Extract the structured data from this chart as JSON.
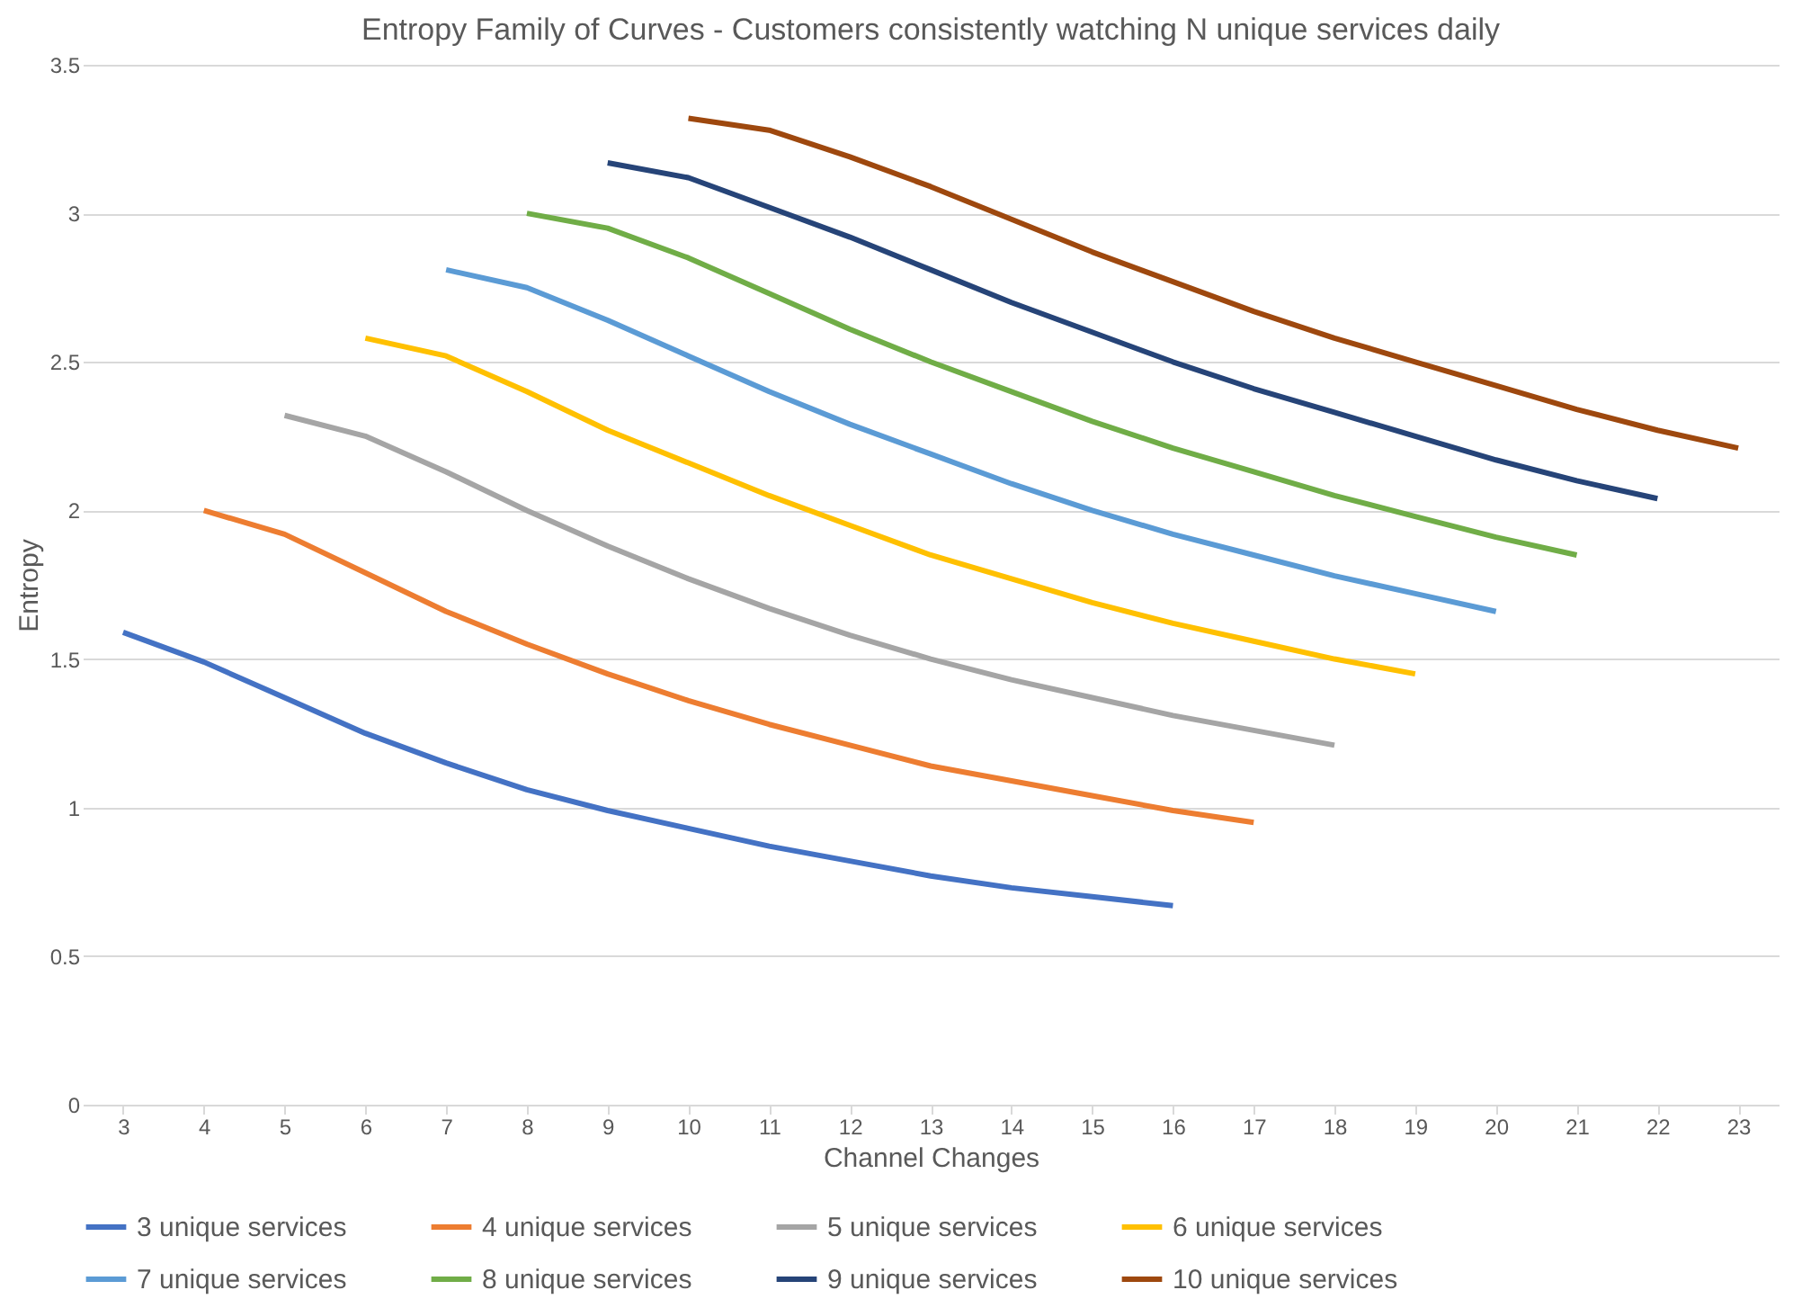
{
  "chart_data": {
    "type": "line",
    "title": "Entropy Family of Curves - Customers consistently watching N unique services daily",
    "xlabel": "Channel Changes",
    "ylabel": "Entropy",
    "categories": [
      "3",
      "4",
      "5",
      "6",
      "7",
      "8",
      "9",
      "10",
      "11",
      "12",
      "13",
      "14",
      "15",
      "16",
      "17",
      "18",
      "19",
      "20",
      "21",
      "22",
      "23"
    ],
    "ylim": [
      0,
      3.5
    ],
    "yticks": [
      0,
      0.5,
      1,
      1.5,
      2,
      2.5,
      3,
      3.5
    ],
    "grid": "y",
    "legend": "bottom",
    "marker": "none",
    "line_style": "solid",
    "series": [
      {
        "name": "3 unique services",
        "color": "#4472c4",
        "values": [
          1.59,
          1.49,
          1.37,
          1.25,
          1.15,
          1.06,
          0.99,
          0.93,
          0.87,
          0.82,
          0.77,
          0.73,
          0.7,
          0.67,
          null,
          null,
          null,
          null,
          null,
          null,
          null
        ]
      },
      {
        "name": "4 unique services",
        "color": "#ed7d31",
        "values": [
          null,
          2.0,
          1.92,
          1.79,
          1.66,
          1.55,
          1.45,
          1.36,
          1.28,
          1.21,
          1.14,
          1.09,
          1.04,
          0.99,
          0.95,
          null,
          null,
          null,
          null,
          null,
          null
        ]
      },
      {
        "name": "5 unique services",
        "color": "#a5a5a5",
        "values": [
          null,
          null,
          2.32,
          2.25,
          2.13,
          2.0,
          1.88,
          1.77,
          1.67,
          1.58,
          1.5,
          1.43,
          1.37,
          1.31,
          1.26,
          1.21,
          null,
          null,
          null,
          null,
          null
        ]
      },
      {
        "name": "6 unique services",
        "color": "#ffc000",
        "values": [
          null,
          null,
          null,
          2.58,
          2.52,
          2.4,
          2.27,
          2.16,
          2.05,
          1.95,
          1.85,
          1.77,
          1.69,
          1.62,
          1.56,
          1.5,
          1.45,
          null,
          null,
          null,
          null
        ]
      },
      {
        "name": "7 unique services",
        "color": "#5b9bd5",
        "values": [
          null,
          null,
          null,
          null,
          2.81,
          2.75,
          2.64,
          2.52,
          2.4,
          2.29,
          2.19,
          2.09,
          2.0,
          1.92,
          1.85,
          1.78,
          1.72,
          1.66,
          null,
          null,
          null
        ]
      },
      {
        "name": "8 unique services",
        "color": "#70ad47",
        "values": [
          null,
          null,
          null,
          null,
          null,
          3.0,
          2.95,
          2.85,
          2.73,
          2.61,
          2.5,
          2.4,
          2.3,
          2.21,
          2.13,
          2.05,
          1.98,
          1.91,
          1.85,
          null,
          null
        ]
      },
      {
        "name": "9 unique services",
        "color": "#264478",
        "values": [
          null,
          null,
          null,
          null,
          null,
          null,
          3.17,
          3.12,
          3.02,
          2.92,
          2.81,
          2.7,
          2.6,
          2.5,
          2.41,
          2.33,
          2.25,
          2.17,
          2.1,
          2.04,
          null
        ]
      },
      {
        "name": "10 unique services",
        "color": "#9e480e",
        "values": [
          null,
          null,
          null,
          null,
          null,
          null,
          null,
          3.32,
          3.28,
          3.19,
          3.09,
          2.98,
          2.87,
          2.77,
          2.67,
          2.58,
          2.5,
          2.42,
          2.34,
          2.27,
          2.21
        ]
      }
    ]
  }
}
